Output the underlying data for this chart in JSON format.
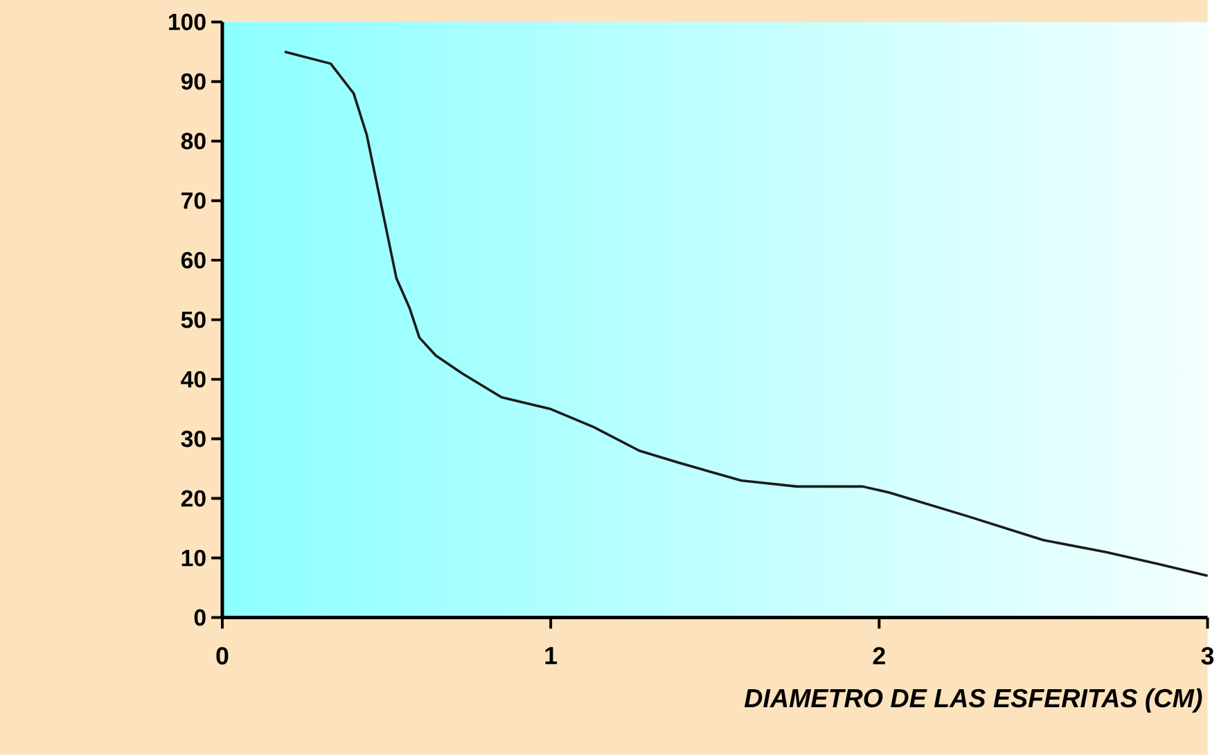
{
  "chart_data": {
    "type": "line",
    "xlabel": "DIAMETRO DE LAS ESFERITAS (CM)",
    "x": [
      0.19,
      0.33,
      0.4,
      0.44,
      0.47,
      0.5,
      0.53,
      0.57,
      0.6,
      0.65,
      0.73,
      0.85,
      1.0,
      1.13,
      1.27,
      1.39,
      1.58,
      1.75,
      1.95,
      2.03,
      2.27,
      2.5,
      2.69,
      2.85,
      3.0
    ],
    "values": [
      95,
      93,
      88,
      81,
      73,
      65,
      57,
      52,
      47,
      44,
      41,
      37,
      35,
      32,
      28,
      26,
      23,
      22,
      22,
      21,
      17,
      13,
      11,
      9,
      7
    ],
    "color": "#1a1a1a",
    "xlim": [
      0,
      3
    ],
    "xticks": [
      0,
      1,
      2,
      3
    ],
    "ylim": [
      0,
      100
    ],
    "yticks": [
      0,
      10,
      20,
      30,
      40,
      50,
      60,
      70,
      80,
      90,
      100
    ]
  }
}
